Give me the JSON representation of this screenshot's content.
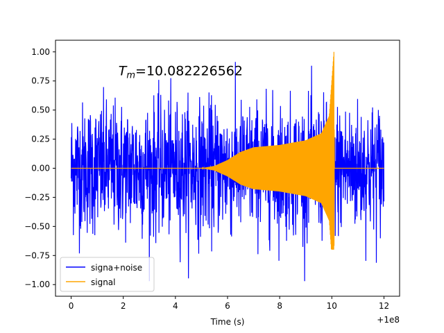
{
  "chart_data": {
    "type": "line",
    "title": "",
    "annotation": {
      "text_symbol": "T",
      "text_subscript": "m",
      "text_value": "=10.082226562",
      "x": 4.2,
      "y": 0.84
    },
    "xlabel": "Time (s)",
    "ylabel": "",
    "x_offset_label": "+1e8",
    "xlim": [
      -0.6,
      12.6
    ],
    "ylim": [
      -1.1,
      1.1
    ],
    "x_ticks": [
      0,
      2,
      4,
      6,
      8,
      10,
      12
    ],
    "x_tick_labels": [
      "0",
      "2",
      "4",
      "6",
      "8",
      "10",
      "12"
    ],
    "y_ticks": [
      -1.0,
      -0.75,
      -0.5,
      -0.25,
      0.0,
      0.25,
      0.5,
      0.75,
      1.0
    ],
    "y_tick_labels": [
      "−1.00",
      "−0.75",
      "−0.50",
      "−0.25",
      "0.00",
      "0.25",
      "0.50",
      "0.75",
      "1.00"
    ],
    "grid": false,
    "legend_position": "lower-left",
    "series": [
      {
        "name": "signa+noise",
        "color": "#0000ff",
        "x_range": [
          0,
          12
        ],
        "typical_amplitude": 0.45,
        "peak_min": -0.97,
        "peak_max": 0.92
      },
      {
        "name": "signal",
        "color": "#ffa500",
        "envelope_points": [
          {
            "x": 0,
            "amp": 0.0
          },
          {
            "x": 5.0,
            "amp": 0.0
          },
          {
            "x": 5.5,
            "amp": 0.02
          },
          {
            "x": 6.0,
            "amp": 0.07
          },
          {
            "x": 6.5,
            "amp": 0.14
          },
          {
            "x": 7.0,
            "amp": 0.18
          },
          {
            "x": 8.0,
            "amp": 0.2
          },
          {
            "x": 9.0,
            "amp": 0.24
          },
          {
            "x": 9.6,
            "amp": 0.3
          },
          {
            "x": 9.9,
            "amp": 0.45
          },
          {
            "x": 10.08,
            "amp": 1.0
          },
          {
            "x": 10.1,
            "amp": 0.0
          },
          {
            "x": 12,
            "amp": 0.0
          }
        ],
        "peak_max": 1.0,
        "peak_min": -0.7,
        "merger_time": 10.082226562
      }
    ]
  }
}
